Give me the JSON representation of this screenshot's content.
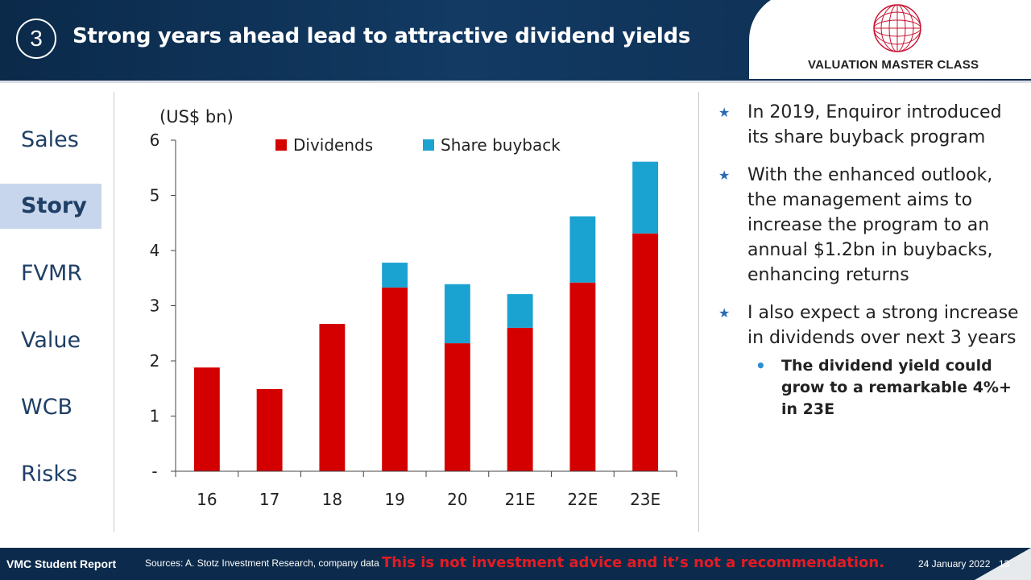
{
  "header": {
    "section_number": "3",
    "title": "Strong years ahead lead to attractive dividend yields",
    "logo_text": "VALUATION MASTER CLASS"
  },
  "sidebar": {
    "items": [
      {
        "label": "Sales",
        "active": false
      },
      {
        "label": "Story",
        "active": true
      },
      {
        "label": "FVMR",
        "active": false
      },
      {
        "label": "Value",
        "active": false
      },
      {
        "label": "WCB",
        "active": false
      },
      {
        "label": "Risks",
        "active": false
      }
    ]
  },
  "chart_data": {
    "type": "bar",
    "stacked": true,
    "unit_label": "(US$ bn)",
    "categories": [
      "16",
      "17",
      "18",
      "19",
      "20",
      "21E",
      "22E",
      "23E"
    ],
    "series": [
      {
        "name": "Dividends",
        "color": "#d40000",
        "values": [
          1.88,
          1.49,
          2.67,
          3.33,
          2.32,
          2.6,
          3.42,
          4.31
        ]
      },
      {
        "name": "Share buyback",
        "color": "#1aa3d1",
        "values": [
          0,
          0,
          0,
          0.45,
          1.07,
          0.61,
          1.2,
          1.3
        ]
      }
    ],
    "y_ticks": [
      "-",
      "1",
      "2",
      "3",
      "4",
      "5",
      "6"
    ],
    "ylim": [
      0,
      6
    ],
    "legend_position": "top"
  },
  "bullets": [
    {
      "text": "In 2019, Enquiror introduced its share buyback program"
    },
    {
      "text": "With the enhanced outlook, the management aims to increase the program to an annual $1.2bn in buybacks, enhancing returns"
    },
    {
      "text": "I also expect a strong increase in dividends over next 3 years"
    }
  ],
  "sub_bullet": "The dividend yield could grow to a remarkable 4%+ in 23E",
  "footer": {
    "left": "VMC Student Report",
    "sources": "Sources: A. Stotz Investment Research, company data",
    "warning": "This is not investment advice and it’s not a recommendation.",
    "date": "24 January 2022",
    "page": "13"
  }
}
